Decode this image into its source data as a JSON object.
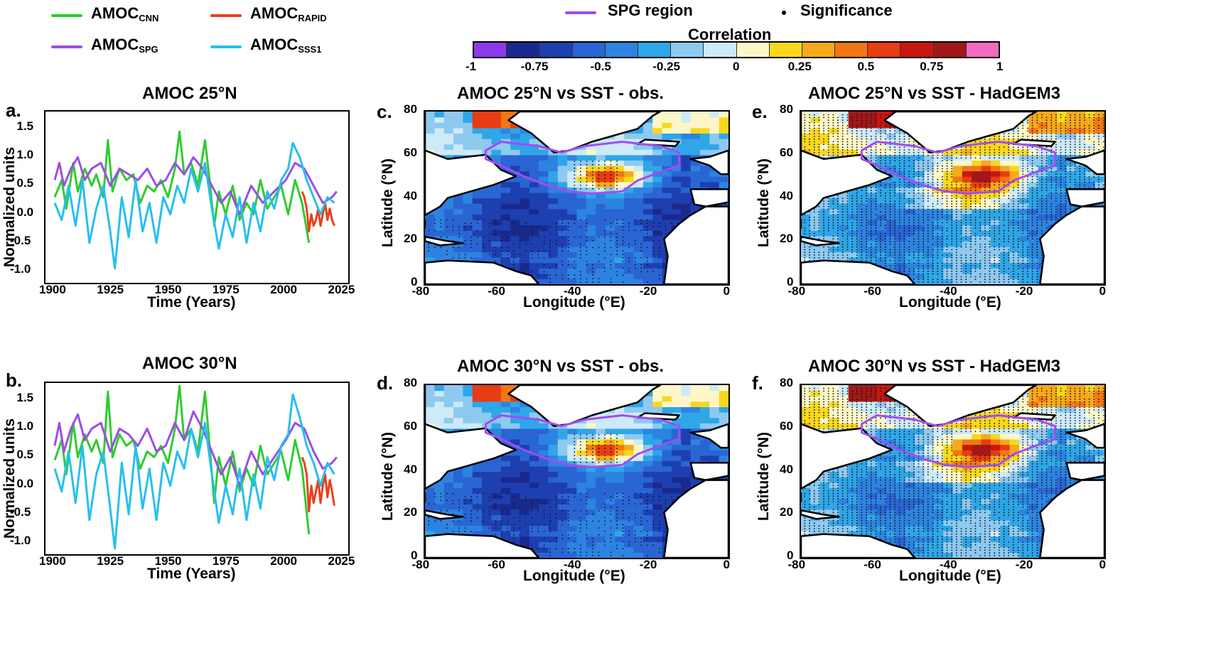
{
  "legend": {
    "items": [
      {
        "base": "AMOC",
        "sub": "CNN",
        "color": "#2ecc2e"
      },
      {
        "base": "AMOC",
        "sub": "RAPID",
        "color": "#e8401c"
      },
      {
        "base": "AMOC",
        "sub": "SPG",
        "color": "#9b4ee6"
      },
      {
        "base": "AMOC",
        "sub": "SSS1",
        "color": "#27bff0"
      }
    ],
    "spg_label": "SPG region",
    "sig_label": "Significance"
  },
  "colorbar": {
    "title": "Correlation",
    "colors": [
      "#8a3ae8",
      "#1a2a8c",
      "#1e3fb0",
      "#2a65d4",
      "#2d84e0",
      "#2fa6e8",
      "#8ec9f0",
      "#cdeaf8",
      "#fdf7c8",
      "#f8d81c",
      "#f6a91a",
      "#f27614",
      "#e83c12",
      "#c8170f",
      "#a01818",
      "#f06cbf"
    ],
    "ticks": [
      "-1",
      "-0.75",
      "-0.5",
      "-0.25",
      "0",
      "0.25",
      "0.5",
      "0.75",
      "1"
    ]
  },
  "ts_axes": {
    "xticks": [
      "1900",
      "1925",
      "1950",
      "1975",
      "2000",
      "2025"
    ],
    "yticks": [
      "1.5",
      "1.0",
      "0.5",
      "0.0",
      "-0.5",
      "-1.0"
    ],
    "xlabel": "Time (Years)",
    "ylabel": "Normalized units"
  },
  "map_axes": {
    "xticks": [
      "-80",
      "-60",
      "-40",
      "-20",
      "0"
    ],
    "yticks": [
      "80",
      "60",
      "40",
      "20",
      "0"
    ],
    "xlabel": "Longitude (°E)",
    "ylabel": "Latitude (°N)"
  },
  "panels": {
    "a": {
      "letter": "a.",
      "title": "AMOC 25°N"
    },
    "b": {
      "letter": "b.",
      "title": "AMOC 30°N"
    },
    "c": {
      "letter": "c.",
      "title": "AMOC 25°N vs SST - obs."
    },
    "d": {
      "letter": "d.",
      "title": "AMOC 30°N vs SST - obs."
    },
    "e": {
      "letter": "e.",
      "title": "AMOC 25°N vs SST - HadGEM3"
    },
    "f": {
      "letter": "f.",
      "title": "AMOC 30°N vs SST - HadGEM3"
    }
  },
  "chart_data": [
    {
      "panel": "a",
      "type": "line",
      "title": "AMOC 25°N",
      "xlabel": "Time (Years)",
      "ylabel": "Normalized units",
      "xlim": [
        1896,
        2027
      ],
      "ylim": [
        -1.2,
        1.8
      ],
      "series": [
        {
          "name": "AMOC_CNN",
          "color": "#2ecc2e",
          "x": [
            1900,
            1903,
            1905,
            1908,
            1910,
            1913,
            1916,
            1918,
            1921,
            1923,
            1925,
            1928,
            1931,
            1934,
            1937,
            1940,
            1943,
            1946,
            1949,
            1952,
            1954,
            1956,
            1959,
            1962,
            1965,
            1967,
            1969,
            1971,
            1974,
            1977,
            1980,
            1983,
            1986,
            1989,
            1992,
            1995,
            1998,
            2001,
            2004,
            2007,
            2010
          ],
          "y": [
            0.3,
            0.6,
            0.1,
            0.9,
            0.4,
            0.8,
            0.5,
            0.7,
            0.3,
            1.3,
            0.4,
            0.8,
            0.6,
            0.7,
            0.2,
            0.5,
            0.4,
            0.6,
            0.3,
            0.8,
            1.45,
            0.7,
            0.9,
            0.5,
            1.3,
            0.6,
            -0.2,
            0.4,
            0.0,
            0.5,
            -0.1,
            0.2,
            0.0,
            0.6,
            0.1,
            0.3,
            0.5,
            0.0,
            0.6,
            0.2,
            -0.5
          ]
        },
        {
          "name": "AMOC_RAPID",
          "color": "#e8401c",
          "x": [
            2007,
            2008,
            2009,
            2010,
            2011,
            2012,
            2013,
            2014,
            2015,
            2016,
            2017,
            2018,
            2019,
            2020,
            2021
          ],
          "y": [
            0.4,
            0.3,
            0.1,
            -0.3,
            0.0,
            -0.2,
            -0.1,
            0.1,
            -0.2,
            0.0,
            0.2,
            -0.1,
            0.1,
            -0.1,
            -0.2
          ]
        },
        {
          "name": "AMOC_SPG",
          "color": "#9b4ee6",
          "x": [
            1900,
            1902,
            1904,
            1907,
            1910,
            1913,
            1916,
            1920,
            1924,
            1928,
            1932,
            1936,
            1940,
            1944,
            1948,
            1952,
            1956,
            1960,
            1964,
            1968,
            1972,
            1976,
            1980,
            1985,
            1990,
            1995,
            2000,
            2004,
            2008,
            2012,
            2016,
            2020,
            2022
          ],
          "y": [
            0.6,
            0.9,
            0.5,
            0.8,
            1.0,
            0.6,
            0.8,
            0.9,
            0.5,
            0.8,
            0.7,
            0.6,
            0.8,
            0.5,
            0.6,
            0.9,
            0.7,
            1.0,
            0.8,
            0.5,
            0.2,
            0.4,
            0.0,
            0.5,
            0.2,
            0.4,
            0.6,
            0.9,
            0.8,
            0.5,
            0.2,
            0.3,
            0.4
          ]
        },
        {
          "name": "AMOC_SSS1",
          "color": "#27bff0",
          "x": [
            1900,
            1903,
            1906,
            1909,
            1912,
            1915,
            1918,
            1921,
            1924,
            1926,
            1929,
            1932,
            1935,
            1938,
            1941,
            1944,
            1947,
            1950,
            1953,
            1956,
            1959,
            1962,
            1965,
            1968,
            1971,
            1974,
            1977,
            1980,
            1983,
            1986,
            1989,
            1992,
            1995,
            1998,
            2001,
            2003,
            2006,
            2009,
            2012,
            2015,
            2018,
            2021
          ],
          "y": [
            0.2,
            -0.1,
            0.5,
            -0.2,
            0.6,
            -0.5,
            0.1,
            0.5,
            -0.3,
            -0.95,
            0.3,
            -0.4,
            0.6,
            -0.3,
            0.2,
            -0.5,
            0.3,
            0.0,
            0.5,
            0.2,
            0.8,
            0.4,
            0.9,
            0.1,
            -0.6,
            0.0,
            -0.4,
            0.3,
            -0.5,
            0.2,
            -0.3,
            0.4,
            0.1,
            0.6,
            0.8,
            1.25,
            1.0,
            0.6,
            0.3,
            0.0,
            0.3,
            0.2
          ]
        }
      ]
    },
    {
      "panel": "b",
      "type": "line",
      "title": "AMOC 30°N",
      "xlabel": "Time (Years)",
      "ylabel": "Normalized units",
      "xlim": [
        1896,
        2027
      ],
      "ylim": [
        -1.2,
        1.8
      ],
      "series": [
        {
          "name": "AMOC_CNN",
          "color": "#2ecc2e",
          "x": [
            1900,
            1903,
            1905,
            1908,
            1910,
            1913,
            1916,
            1918,
            1921,
            1923,
            1925,
            1928,
            1931,
            1934,
            1937,
            1940,
            1943,
            1946,
            1949,
            1952,
            1954,
            1956,
            1959,
            1962,
            1965,
            1967,
            1969,
            1971,
            1974,
            1977,
            1980,
            1983,
            1986,
            1989,
            1992,
            1995,
            1998,
            2001,
            2004,
            2007,
            2010
          ],
          "y": [
            0.45,
            0.8,
            0.2,
            1.1,
            0.5,
            0.9,
            0.6,
            0.8,
            0.4,
            1.65,
            0.5,
            0.9,
            0.7,
            0.8,
            0.3,
            0.6,
            0.5,
            0.7,
            0.4,
            1.0,
            1.75,
            0.8,
            1.0,
            0.6,
            1.65,
            0.7,
            -0.3,
            0.5,
            0.0,
            0.6,
            -0.1,
            0.3,
            0.0,
            0.7,
            0.2,
            0.4,
            0.6,
            0.1,
            0.8,
            0.3,
            -0.85
          ]
        },
        {
          "name": "AMOC_RAPID",
          "color": "#e8401c",
          "x": [
            2007,
            2008,
            2009,
            2010,
            2011,
            2012,
            2013,
            2014,
            2015,
            2016,
            2017,
            2018,
            2019,
            2020,
            2021
          ],
          "y": [
            0.5,
            0.4,
            0.2,
            -0.45,
            0.0,
            -0.3,
            -0.1,
            0.1,
            -0.3,
            0.0,
            0.2,
            -0.2,
            0.1,
            -0.1,
            -0.35
          ]
        },
        {
          "name": "AMOC_SPG",
          "color": "#9b4ee6",
          "x": [
            1900,
            1902,
            1904,
            1907,
            1910,
            1913,
            1916,
            1920,
            1924,
            1928,
            1932,
            1936,
            1940,
            1944,
            1948,
            1952,
            1956,
            1960,
            1964,
            1968,
            1972,
            1976,
            1980,
            1985,
            1990,
            1995,
            2000,
            2004,
            2008,
            2012,
            2016,
            2020,
            2022
          ],
          "y": [
            0.7,
            1.1,
            0.6,
            1.0,
            1.25,
            0.8,
            1.0,
            1.1,
            0.6,
            1.0,
            0.9,
            0.7,
            1.0,
            0.6,
            0.7,
            1.1,
            0.8,
            1.3,
            1.0,
            0.6,
            0.2,
            0.5,
            0.0,
            0.6,
            0.2,
            0.5,
            0.8,
            1.1,
            1.0,
            0.6,
            0.3,
            0.4,
            0.5
          ]
        },
        {
          "name": "AMOC_SSS1",
          "color": "#27bff0",
          "x": [
            1900,
            1903,
            1906,
            1909,
            1912,
            1915,
            1918,
            1921,
            1924,
            1926,
            1929,
            1932,
            1935,
            1938,
            1941,
            1944,
            1947,
            1950,
            1953,
            1956,
            1959,
            1962,
            1965,
            1968,
            1971,
            1974,
            1977,
            1980,
            1983,
            1986,
            1989,
            1992,
            1995,
            1998,
            2001,
            2003,
            2006,
            2009,
            2012,
            2015,
            2018,
            2021
          ],
          "y": [
            0.3,
            -0.1,
            0.6,
            -0.3,
            0.7,
            -0.6,
            0.2,
            0.6,
            -0.4,
            -1.1,
            0.4,
            -0.5,
            0.7,
            -0.4,
            0.3,
            -0.6,
            0.4,
            0.0,
            0.6,
            0.3,
            1.0,
            0.5,
            1.1,
            0.2,
            -0.65,
            0.0,
            -0.5,
            0.3,
            -0.6,
            0.2,
            -0.4,
            0.5,
            0.1,
            0.7,
            0.9,
            1.6,
            1.2,
            0.7,
            0.4,
            0.0,
            0.4,
            0.2
          ]
        }
      ]
    },
    {
      "panel": "c",
      "type": "heatmap",
      "title": "AMOC 25°N vs SST - obs.",
      "xlabel": "Longitude (°E)",
      "ylabel": "Latitude (°N)",
      "xlim": [
        -80,
        0
      ],
      "ylim": [
        0,
        80
      ],
      "clim": [
        -1,
        1
      ]
    },
    {
      "panel": "d",
      "type": "heatmap",
      "title": "AMOC 30°N vs SST - obs.",
      "xlabel": "Longitude (°E)",
      "ylabel": "Latitude (°N)",
      "xlim": [
        -80,
        0
      ],
      "ylim": [
        0,
        80
      ],
      "clim": [
        -1,
        1
      ]
    },
    {
      "panel": "e",
      "type": "heatmap",
      "title": "AMOC 25°N vs SST - HadGEM3",
      "xlabel": "Longitude (°E)",
      "ylabel": "Latitude (°N)",
      "xlim": [
        -80,
        0
      ],
      "ylim": [
        0,
        80
      ],
      "clim": [
        -1,
        1
      ]
    },
    {
      "panel": "f",
      "type": "heatmap",
      "title": "AMOC 30°N vs SST - HadGEM3",
      "xlabel": "Longitude (°E)",
      "ylabel": "Latitude (°N)",
      "xlim": [
        -80,
        0
      ],
      "ylim": [
        0,
        80
      ],
      "clim": [
        -1,
        1
      ]
    }
  ]
}
